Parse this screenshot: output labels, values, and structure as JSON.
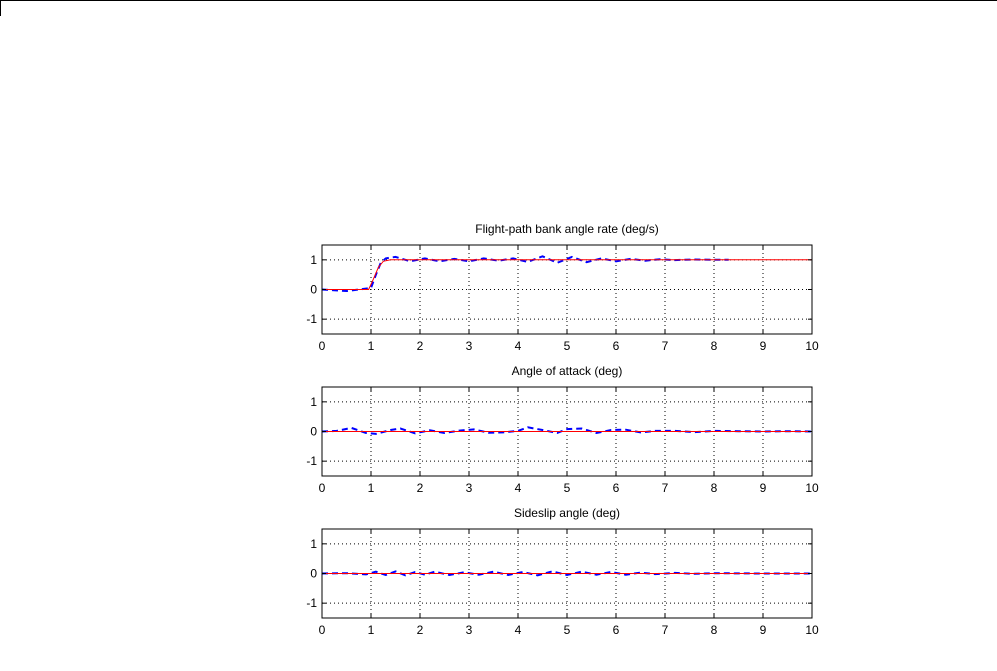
{
  "figure": {
    "line_colors": {
      "reference": "#ff0000",
      "response": "#0000ff"
    }
  },
  "chart_data": [
    {
      "type": "line",
      "title": "Flight-path bank angle rate (deg/s)",
      "xlabel": "",
      "ylabel": "",
      "xlim": [
        0,
        10
      ],
      "ylim": [
        -1.5,
        1.5
      ],
      "xticks": [
        0,
        1,
        2,
        3,
        4,
        5,
        6,
        7,
        8,
        9,
        10
      ],
      "yticks": [
        -1,
        0,
        1
      ],
      "grid": true,
      "series": [
        {
          "role": "reference",
          "style": "solid",
          "color": "#ff0000",
          "x": [
            0,
            0.95,
            1.05,
            1.15,
            1.25,
            1.4,
            10
          ],
          "y": [
            0,
            0,
            0.35,
            0.75,
            0.95,
            1.0,
            1.0
          ]
        },
        {
          "role": "response",
          "style": "dashed",
          "color": "#0000ff",
          "x": [
            0,
            0.5,
            1.0,
            1.1,
            1.2,
            1.3,
            1.5,
            1.8,
            2.1,
            2.4,
            2.7,
            3.0,
            3.3,
            3.6,
            3.9,
            4.2,
            4.5,
            4.8,
            5.1,
            5.4,
            5.7,
            6.0,
            6.3,
            6.6,
            6.9,
            7.2,
            7.6,
            8.0,
            8.3
          ],
          "y": [
            0,
            -0.05,
            0.05,
            0.5,
            0.9,
            1.05,
            1.1,
            0.95,
            1.05,
            0.95,
            1.03,
            0.95,
            1.05,
            0.97,
            1.05,
            0.93,
            1.12,
            0.9,
            1.1,
            0.92,
            1.05,
            0.95,
            1.03,
            0.97,
            1.02,
            0.99,
            1.01,
            1.0,
            1.0
          ]
        }
      ]
    },
    {
      "type": "line",
      "title": "Angle of attack (deg)",
      "xlabel": "",
      "ylabel": "",
      "xlim": [
        0,
        10
      ],
      "ylim": [
        -1.5,
        1.5
      ],
      "xticks": [
        0,
        1,
        2,
        3,
        4,
        5,
        6,
        7,
        8,
        9,
        10
      ],
      "yticks": [
        -1,
        0,
        1
      ],
      "grid": true,
      "series": [
        {
          "role": "reference",
          "style": "solid",
          "color": "#ff0000",
          "x": [
            0,
            10
          ],
          "y": [
            0,
            0
          ]
        },
        {
          "role": "response",
          "style": "dashed",
          "color": "#0000ff",
          "x": [
            0,
            0.3,
            0.6,
            0.9,
            1.1,
            1.4,
            1.6,
            1.9,
            2.2,
            2.5,
            2.8,
            3.1,
            3.4,
            3.7,
            4.0,
            4.2,
            4.5,
            4.8,
            5.0,
            5.3,
            5.6,
            5.9,
            6.2,
            6.5,
            6.8,
            7.2,
            7.6,
            8.0,
            8.5,
            9.0,
            9.5,
            10
          ],
          "y": [
            0,
            0.02,
            0.12,
            -0.05,
            -0.08,
            0.05,
            0.1,
            -0.06,
            0.04,
            -0.05,
            0.03,
            0.07,
            -0.04,
            -0.03,
            0.02,
            0.14,
            0.05,
            -0.05,
            0.08,
            0.1,
            -0.05,
            0.05,
            0.06,
            -0.03,
            0.02,
            0.02,
            -0.02,
            0.02,
            0.01,
            0.0,
            0.01,
            0.0
          ]
        }
      ]
    },
    {
      "type": "line",
      "title": "Sideslip angle (deg)",
      "xlabel": "",
      "ylabel": "",
      "xlim": [
        0,
        10
      ],
      "ylim": [
        -1.5,
        1.5
      ],
      "xticks": [
        0,
        1,
        2,
        3,
        4,
        5,
        6,
        7,
        8,
        9,
        10
      ],
      "yticks": [
        -1,
        0,
        1
      ],
      "grid": true,
      "series": [
        {
          "role": "reference",
          "style": "solid",
          "color": "#ff0000",
          "x": [
            0,
            10
          ],
          "y": [
            0,
            0
          ]
        },
        {
          "role": "response",
          "style": "dashed",
          "color": "#0000ff",
          "x": [
            0,
            0.5,
            0.9,
            1.1,
            1.3,
            1.5,
            1.7,
            1.9,
            2.1,
            2.3,
            2.6,
            2.9,
            3.2,
            3.5,
            3.8,
            4.1,
            4.4,
            4.7,
            5.0,
            5.3,
            5.6,
            5.9,
            6.2,
            6.5,
            6.8,
            7.2,
            7.6,
            8.0,
            9.0,
            10
          ],
          "y": [
            0,
            0.01,
            -0.03,
            0.06,
            -0.05,
            0.07,
            -0.06,
            0.05,
            -0.04,
            0.06,
            -0.05,
            0.04,
            -0.04,
            0.06,
            -0.05,
            0.05,
            -0.06,
            0.07,
            -0.05,
            0.06,
            -0.04,
            0.05,
            -0.04,
            0.03,
            -0.02,
            0.02,
            -0.01,
            0.01,
            0.0,
            0.0
          ]
        }
      ]
    }
  ]
}
